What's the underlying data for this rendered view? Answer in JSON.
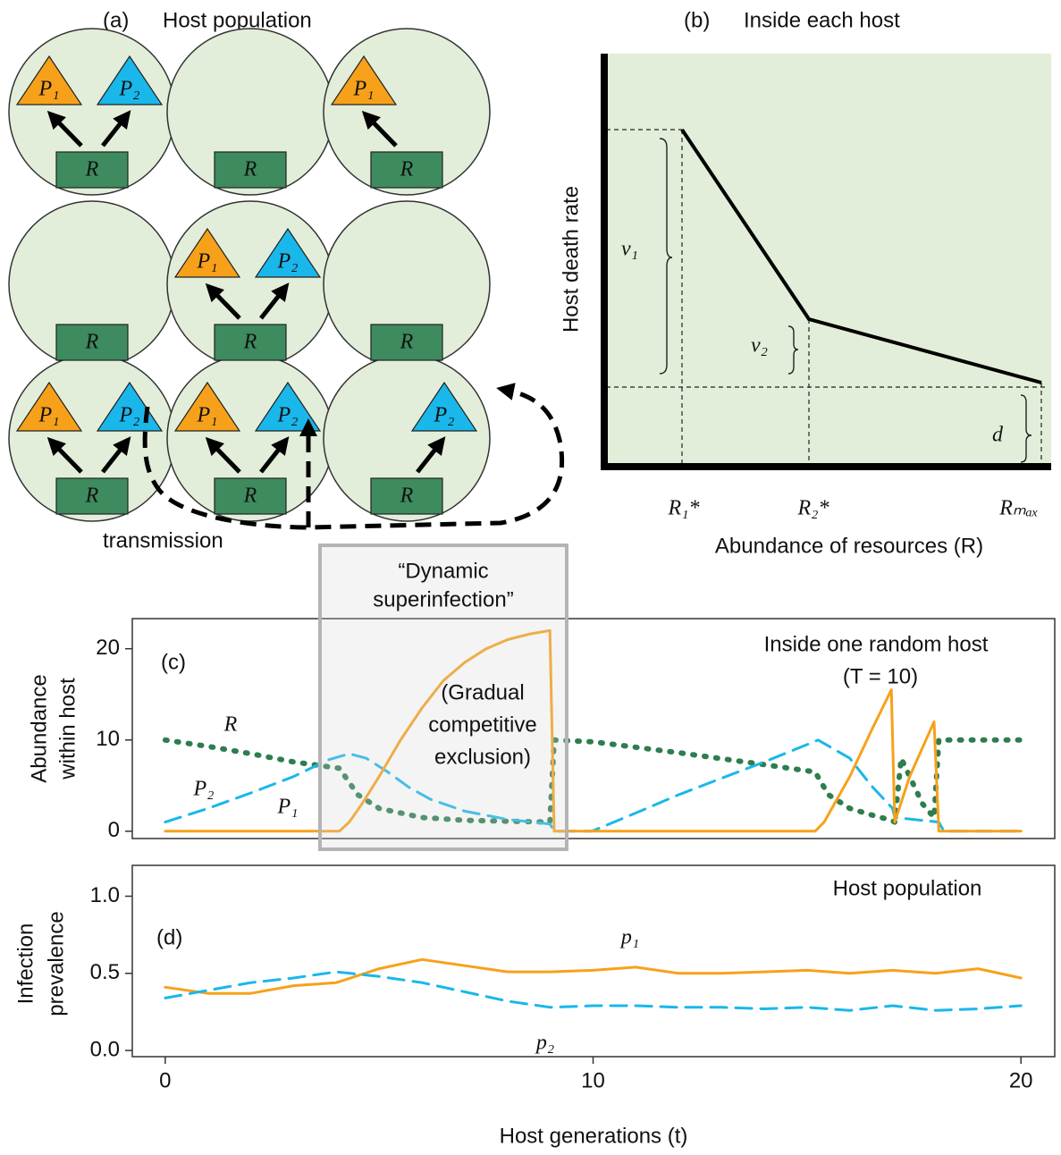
{
  "panel_a": {
    "label": "(a)",
    "title": "Host population",
    "transmission": "transmission",
    "colors": {
      "left": "#f7a11a",
      "right": "#1ab7ea",
      "resource": "#3d8b5e",
      "host": "#e2eed9"
    },
    "cells": [
      {
        "left": "P₁",
        "right": "P₂",
        "resource": "R"
      },
      {
        "resource": "R"
      },
      {
        "left": "P₁",
        "resource": "R"
      },
      {
        "resource": "R"
      },
      {
        "left": "P₁",
        "right": "P₂",
        "resource": "R"
      },
      {
        "resource": "R"
      },
      {
        "left": "P₁",
        "right": "P₂",
        "resource": "R"
      },
      {
        "left": "P₁",
        "right": "P₂",
        "resource": "R"
      },
      {
        "right": "P₂",
        "resource": "R"
      }
    ]
  },
  "panel_b": {
    "label": "(b)",
    "title": "Inside each host",
    "y_label": "Host death rate",
    "x_label": "Abundance of resources (R)",
    "brace_labels": [
      "v₁",
      "v₂",
      "d"
    ],
    "x_marks": [
      {
        "label": "R₁*",
        "color": "#f7a11a"
      },
      {
        "label": "R₂*",
        "color": "#1ab7ea"
      },
      {
        "label": "Rₘₐₓ",
        "color": "#3d8b5e"
      }
    ]
  },
  "box_title": [
    "“Dynamic",
    "superinfection”"
  ],
  "box_note": [
    "(Gradual",
    "competitive",
    "exclusion)"
  ],
  "chart_data": [
    {
      "type": "line",
      "label": "(c)",
      "y_label": [
        "Abundance",
        "within host"
      ],
      "annotations": [
        "Inside one random host",
        "(T = 10)"
      ],
      "xlim": [
        -0.77,
        20.79
      ],
      "ylim": [
        -0.8,
        23.3
      ],
      "yticks": [
        0,
        10,
        20
      ],
      "series": [
        {
          "name": "R",
          "color": "#2e7d4f",
          "style": "dotted",
          "x": [
            0,
            1,
            2,
            3,
            4.07,
            4.5,
            5,
            6,
            7,
            8,
            8.99,
            9.09,
            10,
            12,
            14,
            15.19,
            15.5,
            16,
            16.5,
            16.97,
            17.05,
            17.2,
            17.4,
            17.7,
            17.97,
            18.08,
            20
          ],
          "values": [
            10,
            9.3,
            8.5,
            7.6,
            6.9,
            4,
            2.5,
            1.5,
            1.2,
            1.1,
            1,
            10,
            9.8,
            8.6,
            7.3,
            6.5,
            4,
            2.5,
            1.8,
            1.2,
            1,
            8,
            6,
            3,
            1.5,
            10,
            10
          ]
        },
        {
          "name": "P₂",
          "color": "#1ab7ea",
          "style": "dashed",
          "x": [
            0,
            1,
            2,
            3,
            3.8,
            4.3,
            4.7,
            5.2,
            5.7,
            6.2,
            7,
            8,
            8.99,
            9.09,
            9.97,
            11,
            12,
            13,
            14,
            15,
            15.26,
            16,
            16.5,
            17,
            17.05,
            18.08,
            18.2,
            20
          ],
          "values": [
            1,
            2.5,
            4.2,
            6,
            7.8,
            8.5,
            8,
            6.5,
            4.8,
            3.5,
            2.2,
            1.3,
            0.8,
            0,
            0,
            2,
            4,
            5.8,
            7.6,
            9.5,
            10,
            8,
            5,
            2.5,
            1.5,
            1,
            0,
            0
          ]
        },
        {
          "name": "P₁",
          "color": "#f7a11a",
          "style": "solid",
          "x": [
            0,
            4.07,
            4.3,
            4.6,
            5,
            5.5,
            6,
            6.5,
            7,
            7.5,
            8,
            8.5,
            8.99,
            9.09,
            15.19,
            15.4,
            16,
            16.5,
            16.97,
            17.05,
            17.4,
            17.97,
            18.08,
            20
          ],
          "values": [
            0,
            0,
            1,
            3,
            6,
            10,
            13.5,
            16.5,
            18.5,
            20,
            21,
            21.6,
            22,
            0,
            0,
            1,
            6,
            11,
            15.5,
            1,
            6,
            12,
            0,
            0
          ]
        }
      ]
    },
    {
      "type": "line",
      "label": "(d)",
      "y_label": [
        "Infection",
        "prevalence"
      ],
      "annotations": [
        "Host population"
      ],
      "x_label": "Host generations (t)",
      "xlim": [
        -0.77,
        20.79
      ],
      "xticks": [
        0,
        10,
        20
      ],
      "ylim": [
        -0.04,
        1.2
      ],
      "yticks": [
        {
          "value": 0,
          "label": "0.0"
        },
        {
          "value": 0.5,
          "label": "0.5"
        },
        {
          "value": 1,
          "label": "1.0"
        }
      ],
      "x": [
        0,
        1,
        2,
        3,
        4,
        5,
        6,
        7,
        8,
        9,
        10,
        11,
        12,
        13,
        14,
        15,
        16,
        17,
        18,
        19,
        20
      ],
      "series": [
        {
          "name": "p₁",
          "color": "#f7a11a",
          "style": "solid",
          "values": [
            0.41,
            0.37,
            0.37,
            0.42,
            0.44,
            0.53,
            0.59,
            0.55,
            0.51,
            0.51,
            0.52,
            0.54,
            0.5,
            0.5,
            0.51,
            0.52,
            0.5,
            0.52,
            0.5,
            0.53,
            0.47
          ]
        },
        {
          "name": "p₂",
          "color": "#1ab7ea",
          "style": "dashed",
          "values": [
            0.34,
            0.39,
            0.44,
            0.47,
            0.51,
            0.48,
            0.44,
            0.38,
            0.32,
            0.28,
            0.29,
            0.29,
            0.28,
            0.28,
            0.27,
            0.28,
            0.26,
            0.29,
            0.26,
            0.27,
            0.29
          ]
        }
      ]
    }
  ]
}
